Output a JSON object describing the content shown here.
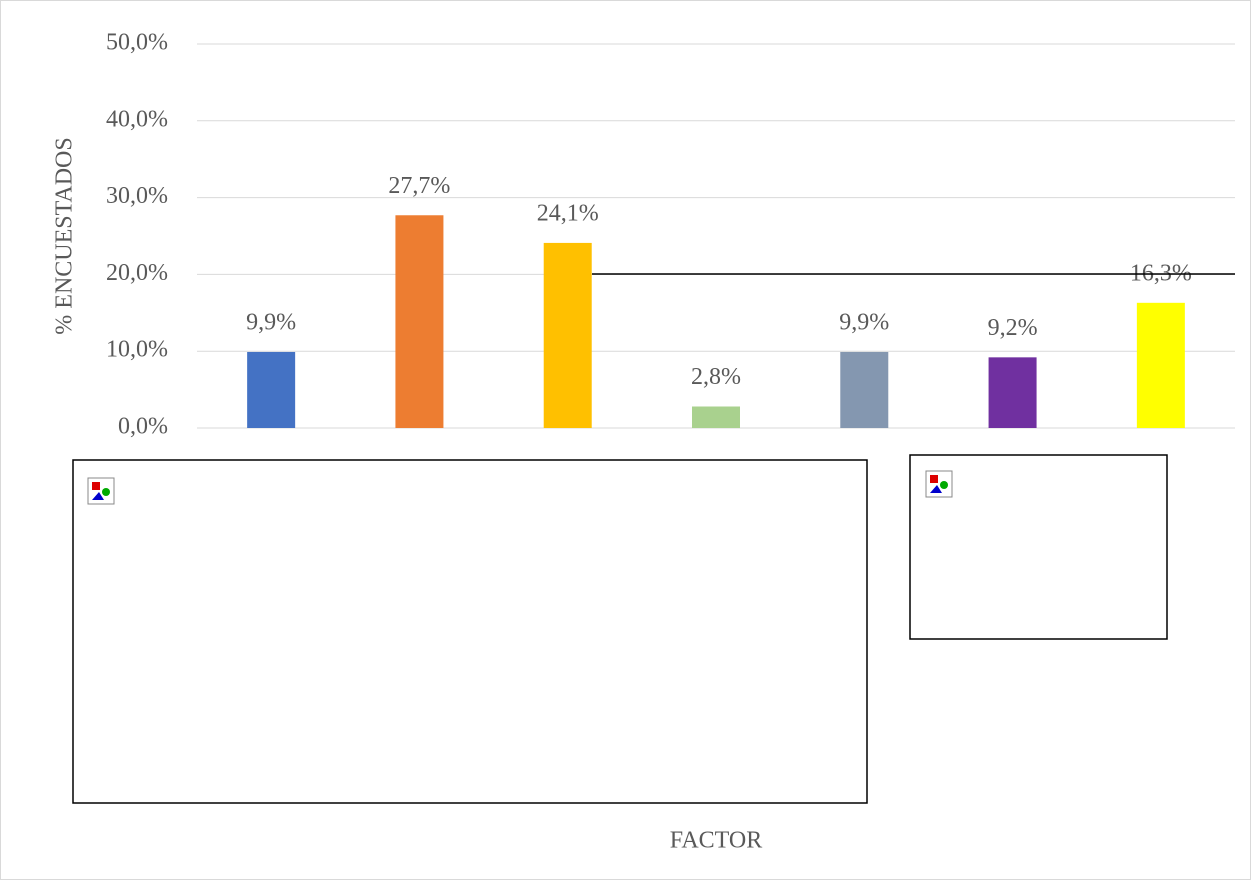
{
  "chart_data": {
    "type": "bar",
    "y_axis_label": "% ENCUESTADOS",
    "x_axis_label": "FACTOR",
    "categories": [
      null,
      null,
      null,
      null,
      null,
      null,
      null
    ],
    "values": [
      9.9,
      27.7,
      24.1,
      2.8,
      9.9,
      9.2,
      16.3
    ],
    "value_labels": [
      "9,9%",
      "27,7%",
      "24,1%",
      "2,8%",
      "9,9%",
      "9,2%",
      "16,3%"
    ],
    "colors": [
      "#4472c4",
      "#ed7d31",
      "#ffc000",
      "#a9d18e",
      "#8497b0",
      "#7030a0",
      "#ffff00"
    ],
    "ylim": [
      0,
      50
    ],
    "yticks": [
      {
        "value": 0,
        "label": "0,0%"
      },
      {
        "value": 10,
        "label": "10,0%"
      },
      {
        "value": 20,
        "label": "20,0%"
      },
      {
        "value": 30,
        "label": "30,0%"
      },
      {
        "value": 40,
        "label": "40,0%"
      },
      {
        "value": 50,
        "label": "50,0%"
      }
    ],
    "grid": true
  }
}
